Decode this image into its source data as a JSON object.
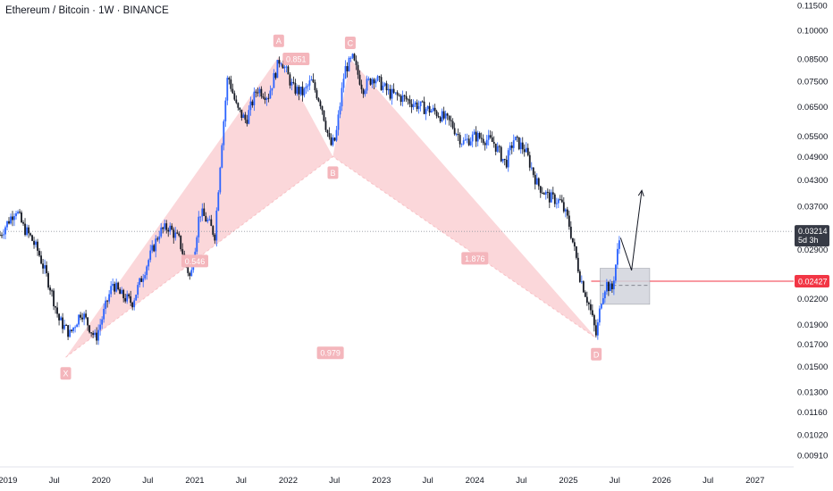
{
  "header": {
    "title": "Ethereum / Bitcoin · 1W · BINANCE"
  },
  "colors": {
    "up": "#2962ff",
    "down": "#131722",
    "pattern_fill": "#f7b6bc",
    "pattern_label_bg": "#f4b6bc",
    "level_line": "#f23645",
    "zone_fill": "#d1d4dc",
    "current_tag": "#363a45"
  },
  "chart_data": {
    "type": "candlestick",
    "title": "Ethereum / Bitcoin · 1W · BINANCE",
    "y_scale": "log",
    "ylim": [
      0.0086,
      0.115
    ],
    "xlim": [
      "2018-12-01",
      "2027-06-01"
    ],
    "y_ticks": [
      "0.11500",
      "0.10000",
      "0.08500",
      "0.07500",
      "0.06500",
      "0.05500",
      "0.04900",
      "0.04300",
      "0.03700",
      "0.02900",
      "0.02200",
      "0.01900",
      "0.01700",
      "0.01500",
      "0.01300",
      "0.01160",
      "0.01020",
      "0.00910"
    ],
    "x_ticks": [
      {
        "label": "2019",
        "date": "2019-01-01"
      },
      {
        "label": "Jul",
        "date": "2019-07-01"
      },
      {
        "label": "2020",
        "date": "2020-01-01"
      },
      {
        "label": "Jul",
        "date": "2020-07-01"
      },
      {
        "label": "2021",
        "date": "2021-01-01"
      },
      {
        "label": "Jul",
        "date": "2021-07-01"
      },
      {
        "label": "2022",
        "date": "2022-01-01"
      },
      {
        "label": "Jul",
        "date": "2022-07-01"
      },
      {
        "label": "2023",
        "date": "2023-01-01"
      },
      {
        "label": "Jul",
        "date": "2023-07-01"
      },
      {
        "label": "2024",
        "date": "2024-01-01"
      },
      {
        "label": "Jul",
        "date": "2024-07-01"
      },
      {
        "label": "2025",
        "date": "2025-01-01"
      },
      {
        "label": "Jul",
        "date": "2025-07-01"
      },
      {
        "label": "2026",
        "date": "2026-01-01"
      },
      {
        "label": "Jul",
        "date": "2026-07-01"
      },
      {
        "label": "2027",
        "date": "2027-01-01"
      }
    ],
    "price_path": [
      {
        "date": "2018-12-01",
        "price": 0.0315
      },
      {
        "date": "2019-02-01",
        "price": 0.0365
      },
      {
        "date": "2019-03-01",
        "price": 0.033
      },
      {
        "date": "2019-04-01",
        "price": 0.031
      },
      {
        "date": "2019-05-01",
        "price": 0.0285
      },
      {
        "date": "2019-06-15",
        "price": 0.0235
      },
      {
        "date": "2019-07-20",
        "price": 0.0195
      },
      {
        "date": "2019-09-01",
        "price": 0.018
      },
      {
        "date": "2019-10-15",
        "price": 0.0205
      },
      {
        "date": "2019-12-10",
        "price": 0.0175
      },
      {
        "date": "2020-02-15",
        "price": 0.024
      },
      {
        "date": "2020-03-15",
        "price": 0.0225
      },
      {
        "date": "2020-05-01",
        "price": 0.0215
      },
      {
        "date": "2020-06-15",
        "price": 0.0255
      },
      {
        "date": "2020-08-15",
        "price": 0.032
      },
      {
        "date": "2020-09-20",
        "price": 0.033
      },
      {
        "date": "2020-11-01",
        "price": 0.0305
      },
      {
        "date": "2020-12-15",
        "price": 0.0245
      },
      {
        "date": "2021-01-20",
        "price": 0.036
      },
      {
        "date": "2021-02-20",
        "price": 0.034
      },
      {
        "date": "2021-03-20",
        "price": 0.0315
      },
      {
        "date": "2021-04-15",
        "price": 0.052
      },
      {
        "date": "2021-05-10",
        "price": 0.078
      },
      {
        "date": "2021-06-15",
        "price": 0.064
      },
      {
        "date": "2021-07-20",
        "price": 0.06
      },
      {
        "date": "2021-09-01",
        "price": 0.072
      },
      {
        "date": "2021-10-15",
        "price": 0.069
      },
      {
        "date": "2021-12-01",
        "price": 0.086
      },
      {
        "date": "2022-01-20",
        "price": 0.072
      },
      {
        "date": "2022-03-01",
        "price": 0.07
      },
      {
        "date": "2022-04-01",
        "price": 0.075
      },
      {
        "date": "2022-05-10",
        "price": 0.066
      },
      {
        "date": "2022-06-15",
        "price": 0.052
      },
      {
        "date": "2022-07-05",
        "price": 0.054
      },
      {
        "date": "2022-08-10",
        "price": 0.08
      },
      {
        "date": "2022-09-10",
        "price": 0.085
      },
      {
        "date": "2022-10-20",
        "price": 0.072
      },
      {
        "date": "2022-12-01",
        "price": 0.077
      },
      {
        "date": "2023-02-01",
        "price": 0.07
      },
      {
        "date": "2023-04-01",
        "price": 0.068
      },
      {
        "date": "2023-06-01",
        "price": 0.065
      },
      {
        "date": "2023-08-01",
        "price": 0.063
      },
      {
        "date": "2023-10-01",
        "price": 0.059
      },
      {
        "date": "2023-11-15",
        "price": 0.053
      },
      {
        "date": "2024-01-01",
        "price": 0.055
      },
      {
        "date": "2024-02-15",
        "price": 0.054
      },
      {
        "date": "2024-03-15",
        "price": 0.053
      },
      {
        "date": "2024-05-01",
        "price": 0.047
      },
      {
        "date": "2024-06-01",
        "price": 0.054
      },
      {
        "date": "2024-07-15",
        "price": 0.051
      },
      {
        "date": "2024-09-01",
        "price": 0.042
      },
      {
        "date": "2024-10-15",
        "price": 0.039
      },
      {
        "date": "2024-12-01",
        "price": 0.038
      },
      {
        "date": "2025-01-01",
        "price": 0.034
      },
      {
        "date": "2025-02-15",
        "price": 0.025
      },
      {
        "date": "2025-03-25",
        "price": 0.021
      },
      {
        "date": "2025-04-20",
        "price": 0.0178
      },
      {
        "date": "2025-05-10",
        "price": 0.022
      },
      {
        "date": "2025-05-28",
        "price": 0.024
      },
      {
        "date": "2025-06-20",
        "price": 0.023
      },
      {
        "date": "2025-07-10",
        "price": 0.028
      },
      {
        "date": "2025-07-24",
        "price": 0.03214
      }
    ],
    "harmonic_pattern": {
      "points": [
        {
          "label": "X",
          "date": "2019-08-15",
          "price": 0.0158
        },
        {
          "label": "A",
          "date": "2021-11-25",
          "price": 0.086
        },
        {
          "label": "B",
          "date": "2022-06-25",
          "price": 0.049
        },
        {
          "label": "C",
          "date": "2022-09-01",
          "price": 0.085
        },
        {
          "label": "D",
          "date": "2025-04-20",
          "price": 0.0176
        }
      ],
      "ratios": [
        {
          "text": "0.851",
          "date": "2022-02-01",
          "price": 0.085
        },
        {
          "text": "0.546",
          "date": "2021-01-01",
          "price": 0.0272
        },
        {
          "text": "1.876",
          "date": "2024-01-01",
          "price": 0.0276
        },
        {
          "text": "0.979",
          "date": "2022-06-15",
          "price": 0.0162
        }
      ]
    },
    "current_price": {
      "value": "0.03214",
      "countdown": "5d 3h"
    },
    "level_price": {
      "value": "0.02427"
    },
    "zone": {
      "start": "2025-05-05",
      "end": "2025-11-15",
      "top": 0.0261,
      "bottom": 0.0213,
      "mid": 0.0237
    },
    "projection": [
      {
        "date": "2025-07-24",
        "price": 0.031
      },
      {
        "date": "2025-09-05",
        "price": 0.0258
      },
      {
        "date": "2025-10-15",
        "price": 0.0405
      }
    ]
  }
}
